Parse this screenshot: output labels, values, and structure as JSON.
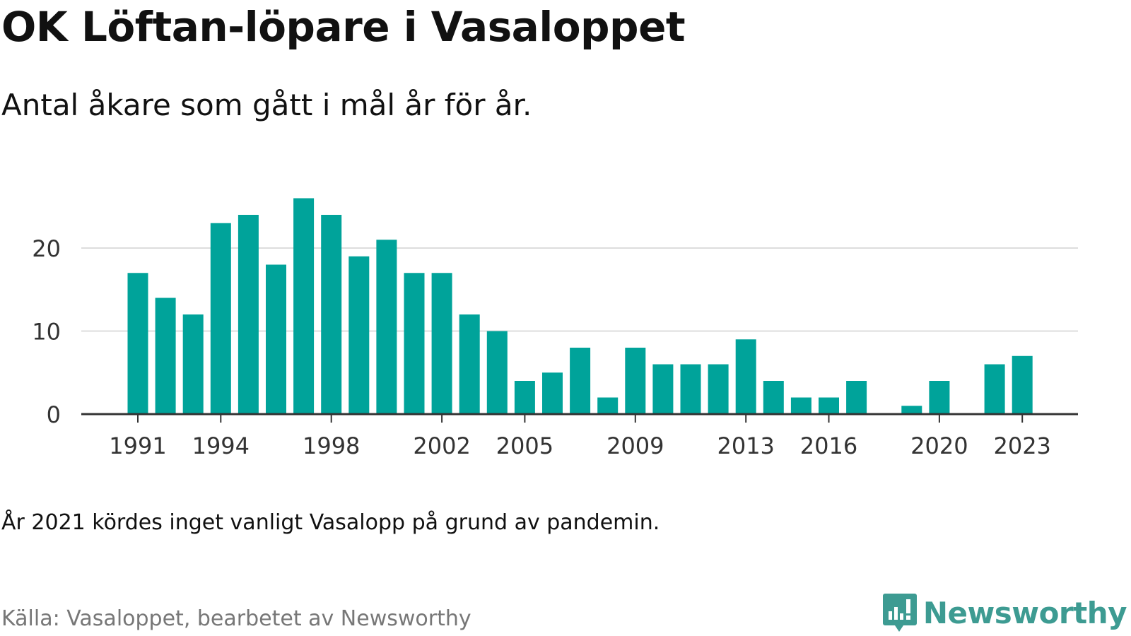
{
  "header": {
    "title": "OK Löftan-löpare i Vasaloppet",
    "subtitle": "Antal åkare som gått i mål år för år."
  },
  "footer": {
    "note": "År 2021 kördes inget vanligt Vasalopp på grund av pandemin.",
    "source": "Källa: Vasaloppet, bearbetet av Newsworthy",
    "brand": "Newsworthy",
    "brand_icon": "newsworthy-logo-icon"
  },
  "colors": {
    "bar": "#00a39a",
    "grid": "#dddddd",
    "axis": "#333333",
    "brand": "#3d9b92"
  },
  "chart_data": {
    "type": "bar",
    "title": "OK Löftan-löpare i Vasaloppet",
    "xlabel": "",
    "ylabel": "",
    "categories": [
      1991,
      1992,
      1993,
      1994,
      1995,
      1996,
      1997,
      1998,
      1999,
      2000,
      2001,
      2002,
      2003,
      2004,
      2005,
      2006,
      2007,
      2008,
      2009,
      2010,
      2011,
      2012,
      2013,
      2014,
      2015,
      2016,
      2017,
      2018,
      2019,
      2020,
      2021,
      2022,
      2023
    ],
    "values": [
      17,
      14,
      12,
      23,
      24,
      18,
      26,
      24,
      19,
      21,
      17,
      17,
      12,
      10,
      4,
      5,
      8,
      2,
      8,
      6,
      6,
      6,
      9,
      4,
      2,
      2,
      4,
      0,
      1,
      4,
      null,
      6,
      7
    ],
    "x_tick_labels": [
      "1991",
      "1994",
      "1998",
      "2002",
      "2005",
      "2009",
      "2013",
      "2016",
      "2020",
      "2023"
    ],
    "y_tick_labels": [
      "0",
      "10",
      "20"
    ],
    "ylim": [
      0,
      26
    ],
    "grid": true,
    "legend": "none"
  }
}
